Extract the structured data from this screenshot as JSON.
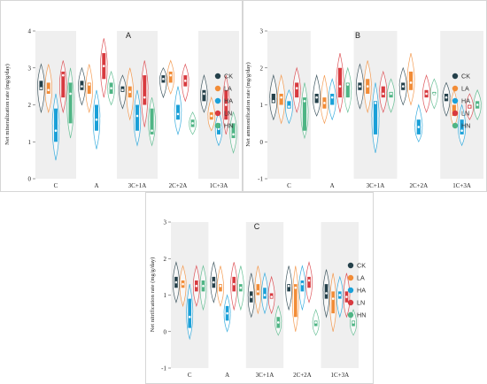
{
  "figure": {
    "background": "#ffffff",
    "band_color": "#efefef",
    "frame_color": "#cccccc"
  },
  "legend": {
    "entries": [
      {
        "name": "CK",
        "color": "#24404a"
      },
      {
        "name": "LA",
        "color": "#f28c37"
      },
      {
        "name": "HA",
        "color": "#1aa0d8"
      },
      {
        "name": "LN",
        "color": "#d83a3f"
      },
      {
        "name": "HN",
        "color": "#4fb585"
      }
    ]
  },
  "chart_data": [
    {
      "panel_label": "A",
      "type": "violin",
      "ylabel": "Net mineralization rate (mg/g/day)",
      "ylim": [
        0,
        4
      ],
      "yticks": [
        0,
        1,
        2,
        3,
        4
      ],
      "categories": [
        "C",
        "A",
        "3C+1A",
        "2C+2A",
        "1C+3A"
      ],
      "shaded_groups": [
        0,
        2,
        4
      ],
      "series": [
        {
          "name": "CK",
          "box": [
            [
              2.4,
              2.65
            ],
            [
              2.4,
              2.65
            ],
            [
              2.35,
              2.5
            ],
            [
              2.6,
              2.8
            ],
            [
              2.1,
              2.4
            ]
          ],
          "median": [
            2.45,
            2.5,
            2.4,
            2.7,
            2.3
          ],
          "range": [
            [
              1.8,
              3.1
            ],
            [
              2.0,
              3.0
            ],
            [
              1.9,
              2.8
            ],
            [
              2.2,
              3.0
            ],
            [
              1.8,
              2.8
            ]
          ]
        },
        {
          "name": "LA",
          "box": [
            [
              2.3,
              2.6
            ],
            [
              2.3,
              2.6
            ],
            [
              2.2,
              2.5
            ],
            [
              2.6,
              2.9
            ],
            [
              1.6,
              1.8
            ]
          ],
          "median": [
            2.4,
            2.55,
            2.35,
            2.8,
            1.7
          ],
          "range": [
            [
              1.8,
              3.1
            ],
            [
              1.8,
              3.1
            ],
            [
              1.6,
              3.0
            ],
            [
              2.3,
              3.2
            ],
            [
              1.3,
              2.2
            ]
          ]
        },
        {
          "name": "HA",
          "box": [
            [
              1.0,
              1.9
            ],
            [
              1.3,
              2.0
            ],
            [
              1.3,
              2.0
            ],
            [
              1.6,
              2.0
            ],
            [
              1.2,
              1.5
            ]
          ],
          "median": [
            1.3,
            1.6,
            1.7,
            1.75,
            1.35
          ],
          "range": [
            [
              0.5,
              2.3
            ],
            [
              0.8,
              2.4
            ],
            [
              0.9,
              2.4
            ],
            [
              1.2,
              2.5
            ],
            [
              0.9,
              1.8
            ]
          ]
        },
        {
          "name": "LN",
          "box": [
            [
              2.2,
              2.9
            ],
            [
              2.7,
              3.4
            ],
            [
              2.0,
              2.8
            ],
            [
              2.5,
              2.8
            ],
            [
              1.6,
              2.4
            ]
          ],
          "median": [
            2.8,
            3.05,
            2.2,
            2.65,
            2.0
          ],
          "range": [
            [
              1.8,
              3.2
            ],
            [
              2.2,
              3.8
            ],
            [
              1.4,
              3.2
            ],
            [
              2.1,
              3.1
            ],
            [
              1.2,
              2.8
            ]
          ]
        },
        {
          "name": "HN",
          "box": [
            [
              1.5,
              2.6
            ],
            [
              2.3,
              2.6
            ],
            [
              1.2,
              1.9
            ],
            [
              1.4,
              1.6
            ],
            [
              1.1,
              1.5
            ]
          ],
          "median": [
            2.3,
            2.45,
            1.3,
            1.5,
            1.2
          ],
          "range": [
            [
              1.1,
              3.0
            ],
            [
              2.0,
              2.9
            ],
            [
              0.9,
              2.2
            ],
            [
              1.2,
              1.8
            ],
            [
              0.7,
              1.8
            ]
          ]
        }
      ]
    },
    {
      "panel_label": "B",
      "type": "violin",
      "ylabel": "Net ammonification rate (mg/g/day)",
      "ylim": [
        -1,
        3
      ],
      "yticks": [
        -1,
        0,
        1,
        2,
        3
      ],
      "categories": [
        "C",
        "A",
        "3C+1A",
        "2C+2A",
        "1C+3A"
      ],
      "shaded_groups": [
        0,
        2,
        4
      ],
      "series": [
        {
          "name": "CK",
          "box": [
            [
              1.05,
              1.3
            ],
            [
              1.05,
              1.3
            ],
            [
              1.4,
              1.6
            ],
            [
              1.4,
              1.6
            ],
            [
              1.1,
              1.3
            ]
          ],
          "median": [
            1.1,
            1.2,
            1.5,
            1.5,
            1.2
          ],
          "range": [
            [
              0.6,
              1.8
            ],
            [
              0.7,
              1.8
            ],
            [
              0.9,
              2.1
            ],
            [
              1.0,
              2.0
            ],
            [
              0.7,
              1.6
            ]
          ]
        },
        {
          "name": "LA",
          "box": [
            [
              1.0,
              1.3
            ],
            [
              0.9,
              1.2
            ],
            [
              1.3,
              1.7
            ],
            [
              1.4,
              1.9
            ],
            [
              0.7,
              1.0
            ]
          ],
          "median": [
            1.2,
            1.05,
            1.5,
            1.6,
            0.8
          ],
          "range": [
            [
              0.5,
              1.8
            ],
            [
              0.5,
              1.8
            ],
            [
              0.8,
              2.2
            ],
            [
              1.0,
              2.4
            ],
            [
              0.4,
              1.4
            ]
          ]
        },
        {
          "name": "HA",
          "box": [
            [
              0.9,
              1.1
            ],
            [
              1.0,
              1.3
            ],
            [
              0.2,
              1.1
            ],
            [
              0.2,
              0.6
            ],
            [
              0.2,
              0.6
            ]
          ],
          "median": [
            0.95,
            1.2,
            1.05,
            0.4,
            0.3
          ],
          "range": [
            [
              0.5,
              1.4
            ],
            [
              0.6,
              1.7
            ],
            [
              -0.3,
              1.6
            ],
            [
              0.0,
              1.0
            ],
            [
              -0.1,
              1.0
            ]
          ]
        },
        {
          "name": "LN",
          "box": [
            [
              1.2,
              1.6
            ],
            [
              1.2,
              2.0
            ],
            [
              1.2,
              1.5
            ],
            [
              1.2,
              1.4
            ],
            [
              0.9,
              1.0
            ]
          ],
          "median": [
            1.45,
            1.5,
            1.3,
            1.3,
            0.95
          ],
          "range": [
            [
              0.8,
              2.0
            ],
            [
              0.8,
              2.4
            ],
            [
              0.8,
              1.9
            ],
            [
              0.8,
              1.8
            ],
            [
              0.6,
              1.3
            ]
          ]
        },
        {
          "name": "HN",
          "box": [
            [
              0.3,
              1.2
            ],
            [
              1.2,
              1.6
            ],
            [
              1.2,
              1.35
            ],
            [
              1.3,
              1.35
            ],
            [
              0.9,
              1.1
            ]
          ],
          "median": [
            1.1,
            1.55,
            1.3,
            1.3,
            1.0
          ],
          "range": [
            [
              0.1,
              1.6
            ],
            [
              0.8,
              2.0
            ],
            [
              0.8,
              1.7
            ],
            [
              0.9,
              1.7
            ],
            [
              0.6,
              1.4
            ]
          ]
        }
      ]
    },
    {
      "panel_label": "C",
      "type": "violin",
      "ylabel": "Net nitrification rate (mg/g/day)",
      "ylim": [
        -1,
        3
      ],
      "yticks": [
        -1,
        0,
        1,
        2,
        3
      ],
      "categories": [
        "C",
        "A",
        "3C+1A",
        "2C+2A",
        "1C+3A"
      ],
      "shaded_groups": [
        0,
        2,
        4
      ],
      "series": [
        {
          "name": "CK",
          "box": [
            [
              1.2,
              1.5
            ],
            [
              1.2,
              1.5
            ],
            [
              0.8,
              1.1
            ],
            [
              1.1,
              1.3
            ],
            [
              0.9,
              1.3
            ]
          ],
          "median": [
            1.35,
            1.35,
            0.95,
            1.25,
            1.05
          ],
          "range": [
            [
              0.8,
              1.9
            ],
            [
              0.8,
              1.9
            ],
            [
              0.4,
              1.6
            ],
            [
              0.6,
              1.8
            ],
            [
              0.4,
              1.7
            ]
          ]
        },
        {
          "name": "LA",
          "box": [
            [
              1.2,
              1.4
            ],
            [
              1.1,
              1.3
            ],
            [
              1.0,
              1.3
            ],
            [
              0.4,
              1.3
            ],
            [
              0.5,
              1.1
            ]
          ],
          "median": [
            1.3,
            1.25,
            1.1,
            1.2,
            0.9
          ],
          "range": [
            [
              0.7,
              1.8
            ],
            [
              0.7,
              1.8
            ],
            [
              0.5,
              1.8
            ],
            [
              0.0,
              1.8
            ],
            [
              0.0,
              1.6
            ]
          ]
        },
        {
          "name": "HA",
          "box": [
            [
              0.1,
              0.9
            ],
            [
              0.3,
              0.7
            ],
            [
              0.9,
              1.2
            ],
            [
              1.1,
              1.4
            ],
            [
              0.9,
              1.1
            ]
          ],
          "median": [
            0.4,
            0.5,
            1.0,
            1.3,
            1.0
          ],
          "range": [
            [
              -0.2,
              1.3
            ],
            [
              0.0,
              1.0
            ],
            [
              0.5,
              1.6
            ],
            [
              0.6,
              1.8
            ],
            [
              0.4,
              1.5
            ]
          ]
        },
        {
          "name": "LN",
          "box": [
            [
              1.1,
              1.4
            ],
            [
              1.1,
              1.5
            ],
            [
              0.9,
              1.05
            ],
            [
              1.2,
              1.5
            ],
            [
              0.8,
              1.1
            ]
          ],
          "median": [
            1.25,
            1.3,
            0.95,
            1.4,
            0.95
          ],
          "range": [
            [
              0.7,
              1.8
            ],
            [
              0.6,
              1.9
            ],
            [
              0.5,
              1.5
            ],
            [
              0.8,
              1.9
            ],
            [
              0.4,
              1.6
            ]
          ]
        },
        {
          "name": "HN",
          "box": [
            [
              1.1,
              1.4
            ],
            [
              1.1,
              1.3
            ],
            [
              0.1,
              0.4
            ],
            [
              0.15,
              0.3
            ],
            [
              0.15,
              0.3
            ]
          ],
          "median": [
            1.25,
            1.2,
            0.25,
            0.25,
            0.25
          ],
          "range": [
            [
              0.6,
              1.8
            ],
            [
              0.6,
              1.8
            ],
            [
              -0.1,
              0.7
            ],
            [
              -0.1,
              0.6
            ],
            [
              -0.1,
              0.6
            ]
          ]
        }
      ]
    }
  ]
}
